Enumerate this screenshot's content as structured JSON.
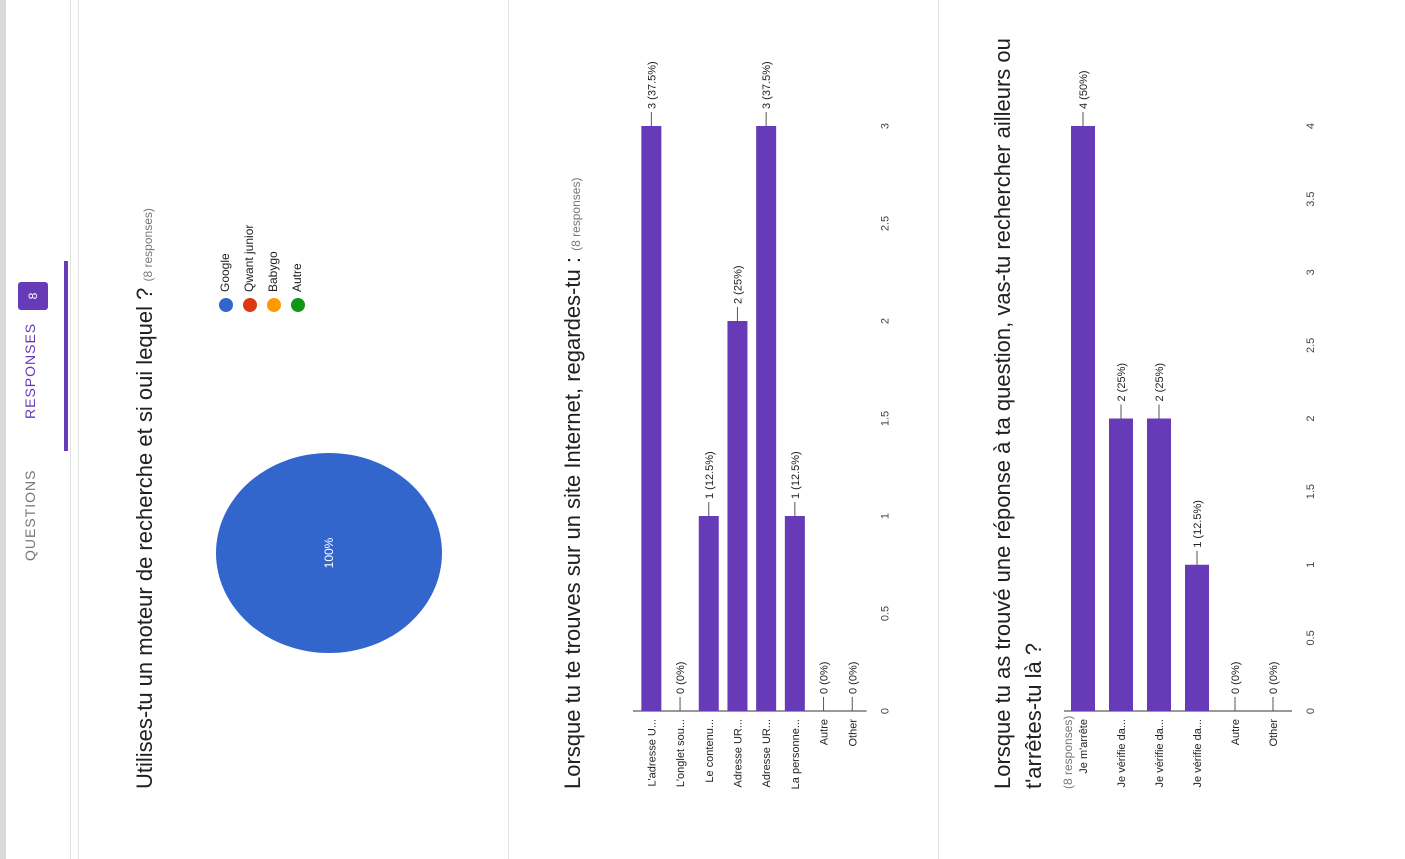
{
  "tabs": {
    "questions": "QUESTIONS",
    "responses": "RESPONSES",
    "response_count": "8"
  },
  "cards": [
    {
      "title": "Utilises-tu un moteur de recherche et si oui lequel ?",
      "responses": "(8 responses)",
      "legend": [
        {
          "label": "Google",
          "color": "#3366cc"
        },
        {
          "label": "Qwant junior",
          "color": "#dc3912"
        },
        {
          "label": "Babygo",
          "color": "#ff9900"
        },
        {
          "label": "Autre",
          "color": "#109618"
        }
      ],
      "pie_label": "100%"
    },
    {
      "title": "Lorsque tu te trouves sur un site Internet, regardes-tu :",
      "responses": "(8 responses)"
    },
    {
      "title": "Lorsque tu as trouvé une réponse à ta question, vas-tu rechercher ailleurs ou t'arrêtes-tu là ?",
      "responses": "(8 responses)"
    }
  ],
  "chart_data": [
    {
      "type": "pie",
      "categories": [
        "Google",
        "Qwant junior",
        "Babygo",
        "Autre"
      ],
      "values": [
        8,
        0,
        0,
        0
      ],
      "colors": [
        "#3366cc",
        "#dc3912",
        "#ff9900",
        "#109618"
      ],
      "slice_labels": [
        "100%"
      ]
    },
    {
      "type": "bar",
      "categories": [
        "L'adresse U...",
        "L'onglet sou...",
        "Le contenu...",
        "Adresse UR...",
        "Adresse UR...",
        "La personne...",
        "Autre",
        "Other"
      ],
      "values": [
        3,
        0,
        1,
        2,
        3,
        1,
        0,
        0
      ],
      "data_labels": [
        "3 (37.5%)",
        "0 (0%)",
        "1 (12.5%)",
        "2 (25%)",
        "3 (37.5%)",
        "1 (12.5%)",
        "0 (0%)",
        "0 (0%)"
      ],
      "ticks": [
        "0",
        "0.5",
        "1",
        "1.5",
        "2",
        "2.5",
        "3"
      ],
      "xlim": [
        0,
        3
      ],
      "color": "#673ab7"
    },
    {
      "type": "bar",
      "categories": [
        "Je m'arrête",
        "Je vérifie da...",
        "Je vérifie da...",
        "Je vérifie da...",
        "Autre",
        "Other"
      ],
      "values": [
        4,
        2,
        2,
        1,
        0,
        0
      ],
      "data_labels": [
        "4 (50%)",
        "2 (25%)",
        "2 (25%)",
        "1 (12.5%)",
        "0 (0%)",
        "0 (0%)"
      ],
      "ticks": [
        "0",
        "0.5",
        "1",
        "1.5",
        "2",
        "2.5",
        "3",
        "3.5",
        "4"
      ],
      "xlim": [
        0,
        4
      ],
      "color": "#673ab7"
    }
  ]
}
